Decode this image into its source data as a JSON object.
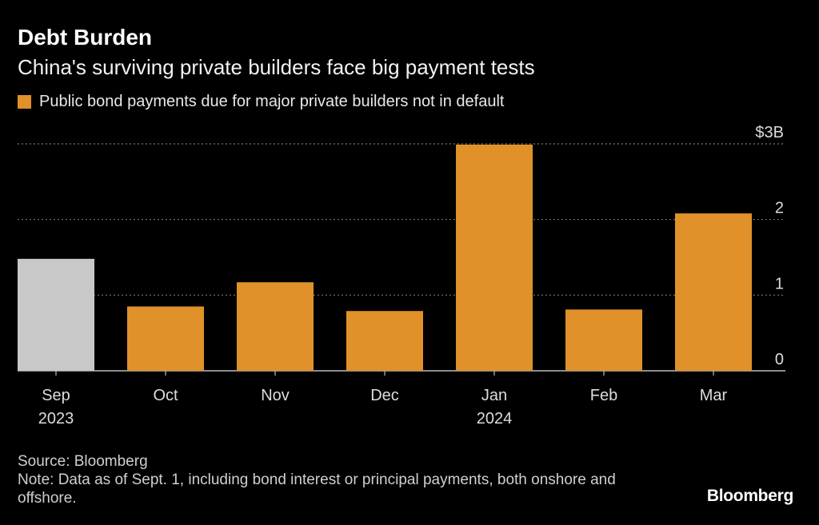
{
  "header": {
    "title": "Debt Burden",
    "subtitle": "China's surviving private builders face big payment tests"
  },
  "legend": {
    "label": "Public bond payments due for major private builders not in default"
  },
  "colors": {
    "primary": "#e0912a",
    "highlight": "#c8c8c8",
    "grid": "#777777",
    "background": "#000000"
  },
  "chart_data": {
    "type": "bar",
    "categories": [
      "Sep",
      "Oct",
      "Nov",
      "Dec",
      "Jan",
      "Feb",
      "Mar"
    ],
    "category_sublabels": [
      "2023",
      "",
      "",
      "",
      "2024",
      "",
      ""
    ],
    "values": [
      1.48,
      0.85,
      1.17,
      0.79,
      2.99,
      0.81,
      2.08
    ],
    "bar_colors": [
      "#c8c8c8",
      "#e0912a",
      "#e0912a",
      "#e0912a",
      "#e0912a",
      "#e0912a",
      "#e0912a"
    ],
    "ylim": [
      0,
      3
    ],
    "yticks": [
      0,
      1,
      2,
      3
    ],
    "ytick_labels": [
      "0",
      "1",
      "2",
      "$3B"
    ],
    "grid": true,
    "y_axis_position": "right"
  },
  "footer": {
    "source": "Source: Bloomberg",
    "note": "Note: Data as of Sept. 1, including bond interest or principal payments, both onshore and offshore."
  },
  "brand": {
    "logo": "Bloomberg"
  }
}
